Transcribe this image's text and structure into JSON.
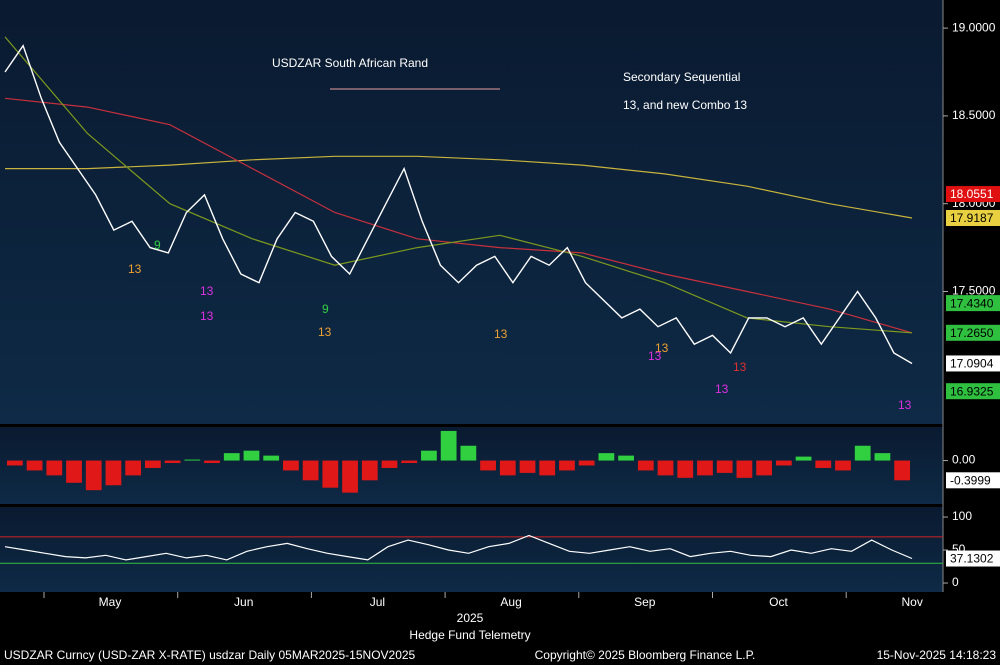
{
  "chart_data": [
    {
      "type": "line",
      "title": "USDZAR South African Rand",
      "annotation": [
        "Secondary Sequential",
        "13, and new Combo 13"
      ],
      "ylim": [
        16.74,
        19.16
      ],
      "yticks": [
        {
          "value": 19,
          "label": "19.0000"
        },
        {
          "value": 18.5,
          "label": "18.5000"
        },
        {
          "value": 18,
          "label": "18.0000"
        },
        {
          "value": 17.5,
          "label": "17.5000"
        }
      ],
      "series": [
        {
          "name": "USDZAR",
          "color": "#ffffff",
          "values": [
            18.75,
            18.9,
            18.6,
            18.35,
            18.2,
            18.05,
            17.85,
            17.9,
            17.75,
            17.72,
            17.95,
            18.05,
            17.8,
            17.6,
            17.55,
            17.8,
            17.95,
            17.9,
            17.7,
            17.6,
            17.8,
            18.0,
            18.2,
            17.9,
            17.65,
            17.55,
            17.65,
            17.7,
            17.55,
            17.7,
            17.65,
            17.75,
            17.55,
            17.45,
            17.35,
            17.4,
            17.3,
            17.35,
            17.2,
            17.25,
            17.15,
            17.35,
            17.35,
            17.3,
            17.35,
            17.2,
            17.35,
            17.5,
            17.35,
            17.15,
            17.09
          ]
        },
        {
          "name": "MA50",
          "color": "#7d9a1e",
          "values": [
            18.95,
            18.4,
            18.0,
            17.8,
            17.65,
            17.75,
            17.82,
            17.7,
            17.55,
            17.35,
            17.3,
            17.265
          ]
        },
        {
          "name": "MA100",
          "color": "#c8303c",
          "values": [
            18.6,
            18.55,
            18.45,
            18.2,
            17.95,
            17.8,
            17.75,
            17.72,
            17.6,
            17.5,
            17.4,
            17.265
          ]
        },
        {
          "name": "MA200",
          "color": "#c8b43c",
          "values": [
            18.2,
            18.2,
            18.22,
            18.25,
            18.27,
            18.27,
            18.25,
            18.22,
            18.17,
            18.1,
            18.0,
            17.9187
          ]
        }
      ],
      "price_tags": [
        {
          "value": 18.0551,
          "label": "18.0551",
          "color": "#e01010"
        },
        {
          "value": 17.9187,
          "label": "17.9187",
          "color": "#e8d040"
        },
        {
          "value": 17.434,
          "label": "17.4340",
          "color": "#30c040"
        },
        {
          "value": 17.265,
          "label": "17.2650",
          "color": "#30c040"
        },
        {
          "value": 17.0904,
          "label": "17.0904",
          "color": "#ffffff"
        },
        {
          "value": 16.9325,
          "label": "16.9325",
          "color": "#30c040"
        }
      ],
      "counts": [
        {
          "text": "9",
          "color": "#30d040"
        },
        {
          "text": "13",
          "color": "#f0a030"
        },
        {
          "text": "13",
          "color": "#e030e0"
        },
        {
          "text": "13",
          "color": "#e030e0"
        },
        {
          "text": "13",
          "color": "#f0a030"
        },
        {
          "text": "9",
          "color": "#30d040"
        },
        {
          "text": "13",
          "color": "#f0a030"
        },
        {
          "text": "13",
          "color": "#f0a030"
        },
        {
          "text": "13",
          "color": "#e030e0"
        },
        {
          "text": "13",
          "color": "#e03030"
        },
        {
          "text": "13",
          "color": "#e030e0"
        },
        {
          "text": "13",
          "color": "#e030e0"
        }
      ]
    },
    {
      "type": "bar",
      "color_up": "#30d040",
      "color_down": "#e01818",
      "ylim": [
        -0.9,
        0.72
      ],
      "yticks": [
        {
          "value": 0,
          "label": "0.00"
        }
      ],
      "values": [
        -0.1,
        -0.2,
        -0.3,
        -0.45,
        -0.6,
        -0.5,
        -0.3,
        -0.15,
        -0.05,
        0.02,
        -0.05,
        0.15,
        0.2,
        0.1,
        -0.2,
        -0.4,
        -0.55,
        -0.65,
        -0.4,
        -0.15,
        -0.05,
        0.2,
        0.6,
        0.3,
        -0.2,
        -0.3,
        -0.25,
        -0.3,
        -0.2,
        -0.1,
        0.15,
        0.1,
        -0.2,
        -0.3,
        -0.35,
        -0.3,
        -0.25,
        -0.35,
        -0.3,
        -0.1,
        0.08,
        -0.15,
        -0.2,
        0.3,
        0.15,
        -0.4
      ],
      "last": {
        "value": -0.3999,
        "label": "-0.3999"
      }
    },
    {
      "type": "line",
      "color": "#ffffff",
      "ylim": [
        -13.6,
        115.2
      ],
      "yticks": [
        100,
        50,
        0
      ],
      "levels": [
        {
          "value": 70,
          "color": "#d02020"
        },
        {
          "value": 30,
          "color": "#30c040"
        }
      ],
      "values": [
        55,
        50,
        45,
        40,
        38,
        42,
        35,
        40,
        45,
        38,
        42,
        35,
        48,
        55,
        60,
        52,
        45,
        40,
        35,
        55,
        65,
        58,
        50,
        45,
        55,
        60,
        72,
        60,
        48,
        45,
        50,
        55,
        48,
        52,
        40,
        45,
        48,
        42,
        40,
        50,
        45,
        52,
        48,
        65,
        50,
        37.1302
      ],
      "last": {
        "value": 37.1302,
        "label": "37.1302"
      }
    }
  ],
  "x_axis": {
    "categories": [
      "May",
      "Jun",
      "Jul",
      "Aug",
      "Sep",
      "Oct",
      "Nov"
    ],
    "year": "2025"
  },
  "footer": {
    "left": "USDZAR Curncy (USD-ZAR X-RATE) usdzar Daily 05MAR2025-15NOV2025",
    "center_top": "Hedge Fund Telemetry",
    "center": "Copyright© 2025 Bloomberg Finance L.P.",
    "right": "15-Nov-2025 14:18:23"
  }
}
